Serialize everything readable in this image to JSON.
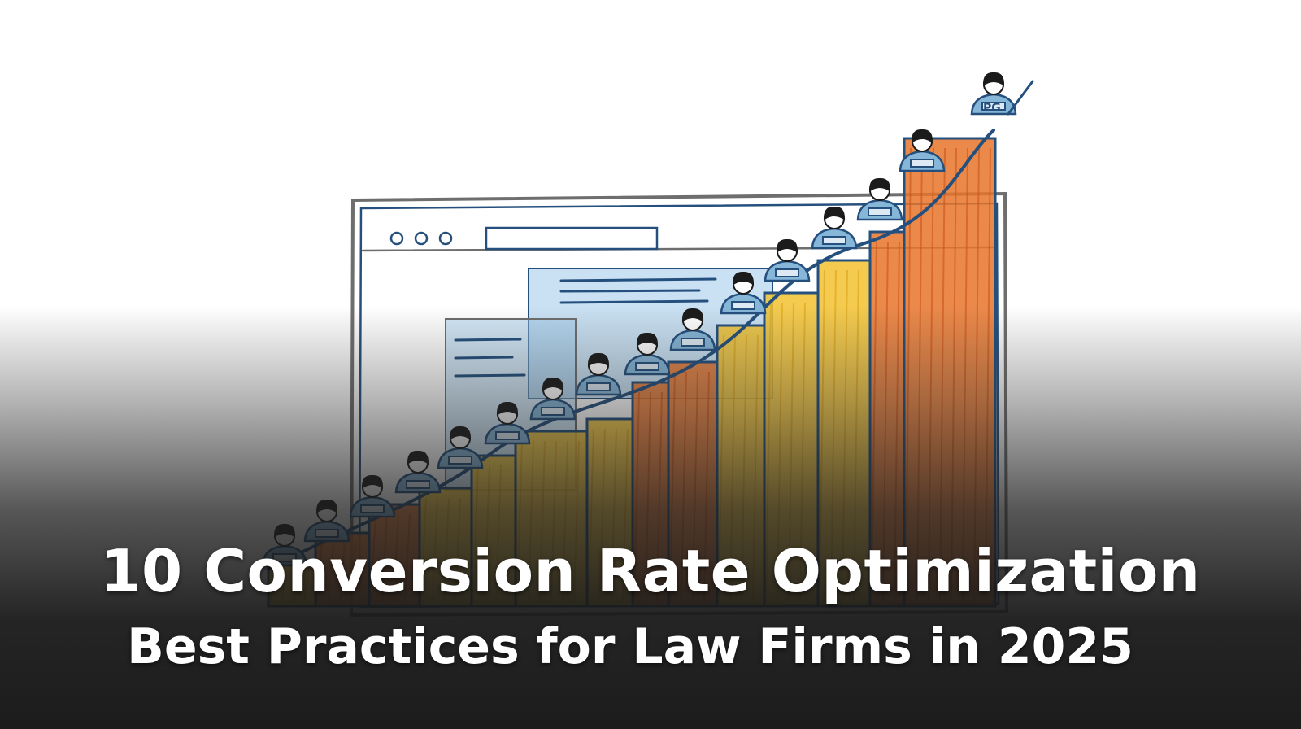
{
  "title": {
    "line1": "10 Conversion Rate Optimization",
    "line2": "Best Practices for Law Firms in 2025"
  },
  "illustration": {
    "style": "hand-drawn sketch",
    "subject": "bar-chart staircase inside browser window with people climbing",
    "people_count": 16,
    "top_figure_badge": "PG",
    "colors": {
      "outline_blue": "#25507e",
      "bar_yellow": "#f2c230",
      "bar_orange": "#e8742a",
      "sky_blue": "#9cc9ea",
      "window_gray": "#6e6e6e",
      "shirt_blue": "#86b6d8",
      "hair": "#1b1b1b"
    }
  }
}
